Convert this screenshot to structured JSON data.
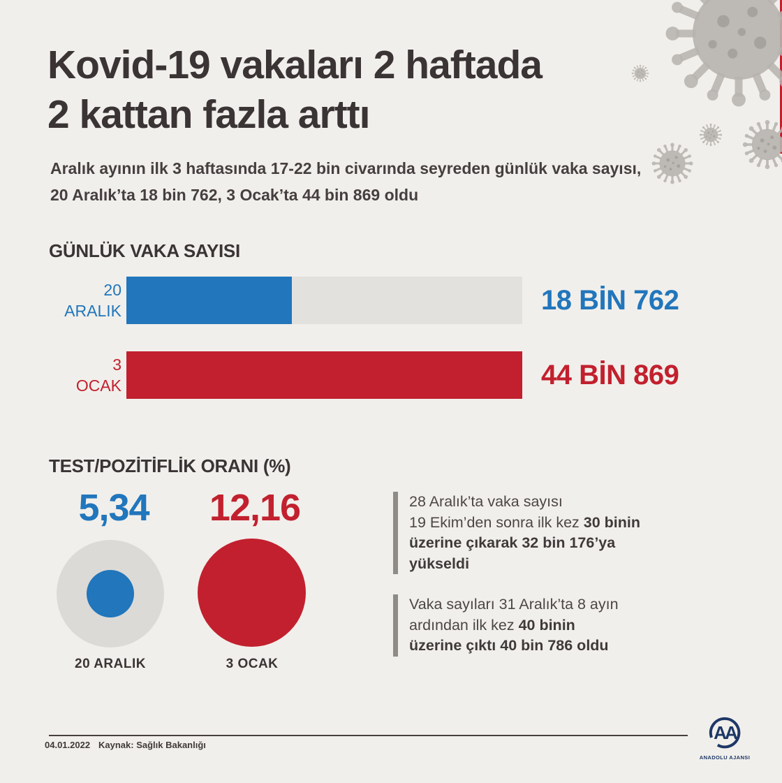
{
  "page": {
    "background": "#f1efeb",
    "accent_blue": "#2176bc",
    "accent_red": "#c2202e",
    "text_dark": "#3a3435",
    "track_gray": "#e3e1de",
    "circle_gray": "#dcdad6",
    "logo_navy": "#1d3766"
  },
  "header": {
    "title": "Kovid-19 vakaları 2 haftada\n2 kattan fazla arttı",
    "subtitle": "Aralık ayının ilk 3 haftasında 17-22 bin civarında seyreden günlük vaka sayısı,\n20 Aralık’ta 18 bin 762, 3 Ocak’ta 44 bin 869 oldu"
  },
  "chart_data": [
    {
      "type": "bar",
      "orientation": "horizontal",
      "title": "GÜNLÜK VAKA SAYISI",
      "categories": [
        "20 Aralık",
        "3 Ocak"
      ],
      "axis_labels": [
        "20\nARALIK",
        "3\nOCAK"
      ],
      "values": [
        18762,
        44869
      ],
      "value_labels": [
        "18 BİN 762",
        "44 BİN 869"
      ],
      "colors": [
        "#2176bc",
        "#c2202e"
      ],
      "xlim": [
        0,
        44869
      ],
      "grid": false,
      "track_color": "#e3e1de"
    },
    {
      "type": "bubble",
      "title": "TEST/POZİTİFLİK ORANI (%)",
      "categories": [
        "20 ARALIK",
        "3 OCAK"
      ],
      "values": [
        5.34,
        12.16
      ],
      "value_labels": [
        "5,34",
        "12,16"
      ],
      "colors": [
        "#2176bc",
        "#c2202e"
      ],
      "reference_circle_color": "#dcdad6"
    }
  ],
  "info_blocks": [
    {
      "segments": [
        {
          "t": "28 Aralık’ta vaka sayısı\n19 Ekim’den sonra ilk kez ",
          "b": false
        },
        {
          "t": "30 binin\nüzerine çıkarak 32 bin 176’ya\nyükseldi",
          "b": true
        }
      ]
    },
    {
      "segments": [
        {
          "t": "Vaka sayıları 31 Aralık’ta 8 ayın\nardından ilk kez ",
          "b": false
        },
        {
          "t": "40 binin\nüzerine çıktı 40 bin 786 oldu",
          "b": true
        }
      ]
    }
  ],
  "footer": {
    "date": "04.01.2022",
    "source": "Kaynak: Sağlık Bakanlığı",
    "logo_monogram": "AA",
    "logo_text": "ANADOLU AJANSI"
  }
}
